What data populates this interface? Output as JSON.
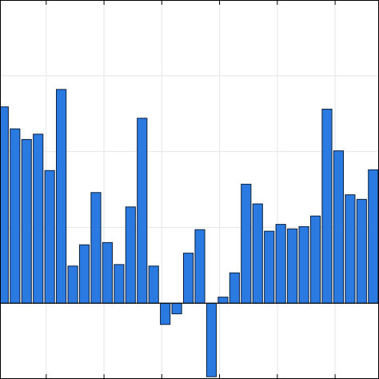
{
  "chart_data": {
    "type": "bar",
    "x": [
      1,
      2,
      3,
      4,
      5,
      6,
      7,
      8,
      9,
      10,
      11,
      12,
      13,
      14,
      15,
      16,
      17,
      18,
      19,
      20,
      21,
      22,
      23,
      24,
      25,
      26,
      27,
      28,
      29,
      30,
      31,
      32,
      33
    ],
    "values": [
      2.59,
      2.3,
      2.16,
      2.23,
      1.75,
      2.82,
      0.49,
      0.77,
      1.46,
      0.8,
      0.51,
      1.27,
      2.44,
      0.49,
      -0.28,
      -0.14,
      0.66,
      0.97,
      -0.97,
      0.08,
      0.4,
      1.57,
      1.31,
      0.95,
      1.04,
      0.98,
      1.01,
      1.15,
      2.56,
      2.01,
      1.43,
      1.37,
      1.76
    ],
    "color": "#2a7ae2",
    "xlim": [
      0.7,
      33.5
    ],
    "xticks": [
      4.7,
      9.7,
      14.7,
      19.7,
      24.7,
      29.7
    ],
    "ylim": [
      -1,
      4
    ],
    "yticks": [
      -1,
      0,
      1,
      2,
      3,
      4
    ],
    "grid": true
  }
}
